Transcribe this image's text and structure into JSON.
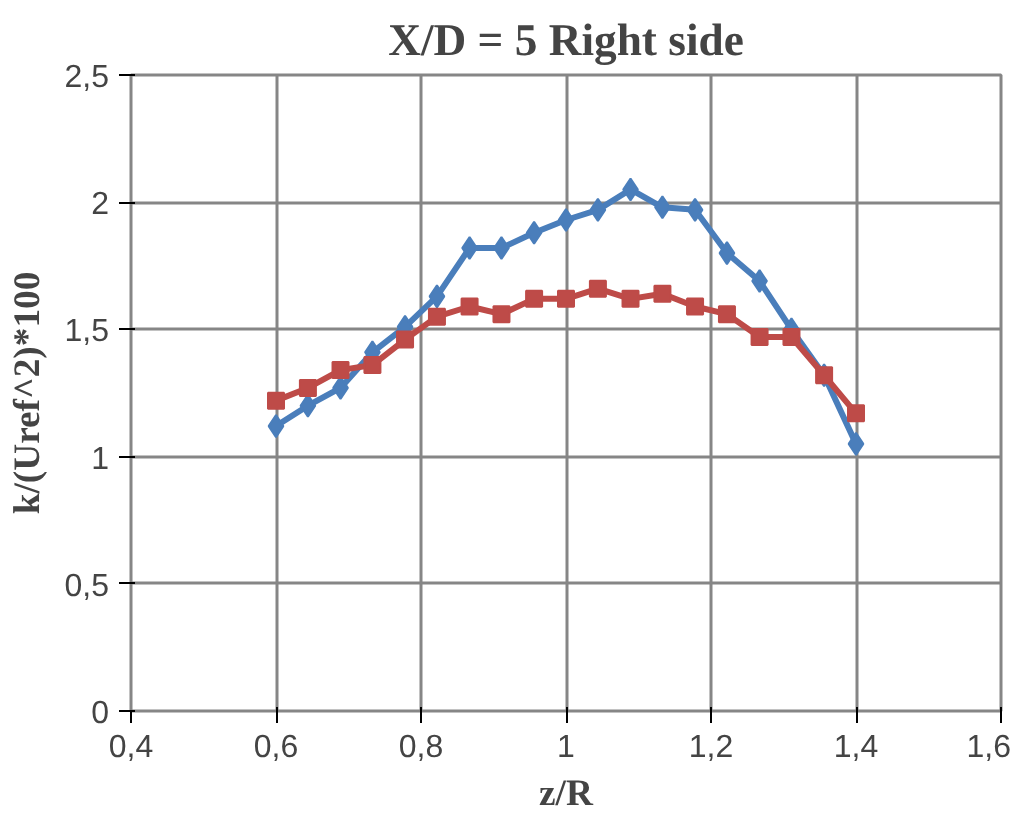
{
  "chart_data": {
    "type": "line",
    "title": "X/D = 5 Right side",
    "xlabel": "z/R",
    "ylabel": "k/(Uref^2)*100",
    "x": [
      0.6,
      0.644,
      0.689,
      0.733,
      0.778,
      0.822,
      0.867,
      0.911,
      0.956,
      1.0,
      1.044,
      1.089,
      1.133,
      1.178,
      1.222,
      1.267,
      1.311,
      1.356,
      1.4
    ],
    "series": [
      {
        "color": "#4a7ebb",
        "marker": "diamond",
        "values": [
          1.12,
          1.2,
          1.27,
          1.41,
          1.51,
          1.63,
          1.82,
          1.82,
          1.88,
          1.93,
          1.97,
          2.05,
          1.98,
          1.97,
          1.8,
          1.69,
          1.5,
          1.32,
          1.05
        ]
      },
      {
        "color": "#be4b48",
        "marker": "square",
        "values": [
          1.22,
          1.27,
          1.34,
          1.36,
          1.46,
          1.55,
          1.59,
          1.56,
          1.62,
          1.62,
          1.66,
          1.62,
          1.64,
          1.59,
          1.56,
          1.47,
          1.47,
          1.32,
          1.17
        ]
      }
    ],
    "xlim": [
      0.4,
      1.6
    ],
    "xticks": [
      {
        "value": 0.4,
        "label": "0,4"
      },
      {
        "value": 0.6,
        "label": "0,6"
      },
      {
        "value": 0.8,
        "label": "0,8"
      },
      {
        "value": 1.0,
        "label": "1"
      },
      {
        "value": 1.2,
        "label": "1,2"
      },
      {
        "value": 1.4,
        "label": "1,4"
      },
      {
        "value": 1.6,
        "label": "1,6"
      }
    ],
    "ylim": [
      0,
      2.5
    ],
    "yticks": [
      0,
      {
        "value": 0.5,
        "label": "0,5"
      },
      1,
      {
        "value": 1.5,
        "label": "1,5"
      },
      2,
      {
        "value": 2.5,
        "label": "2,5"
      }
    ],
    "grid": true,
    "line_style": "solid"
  }
}
